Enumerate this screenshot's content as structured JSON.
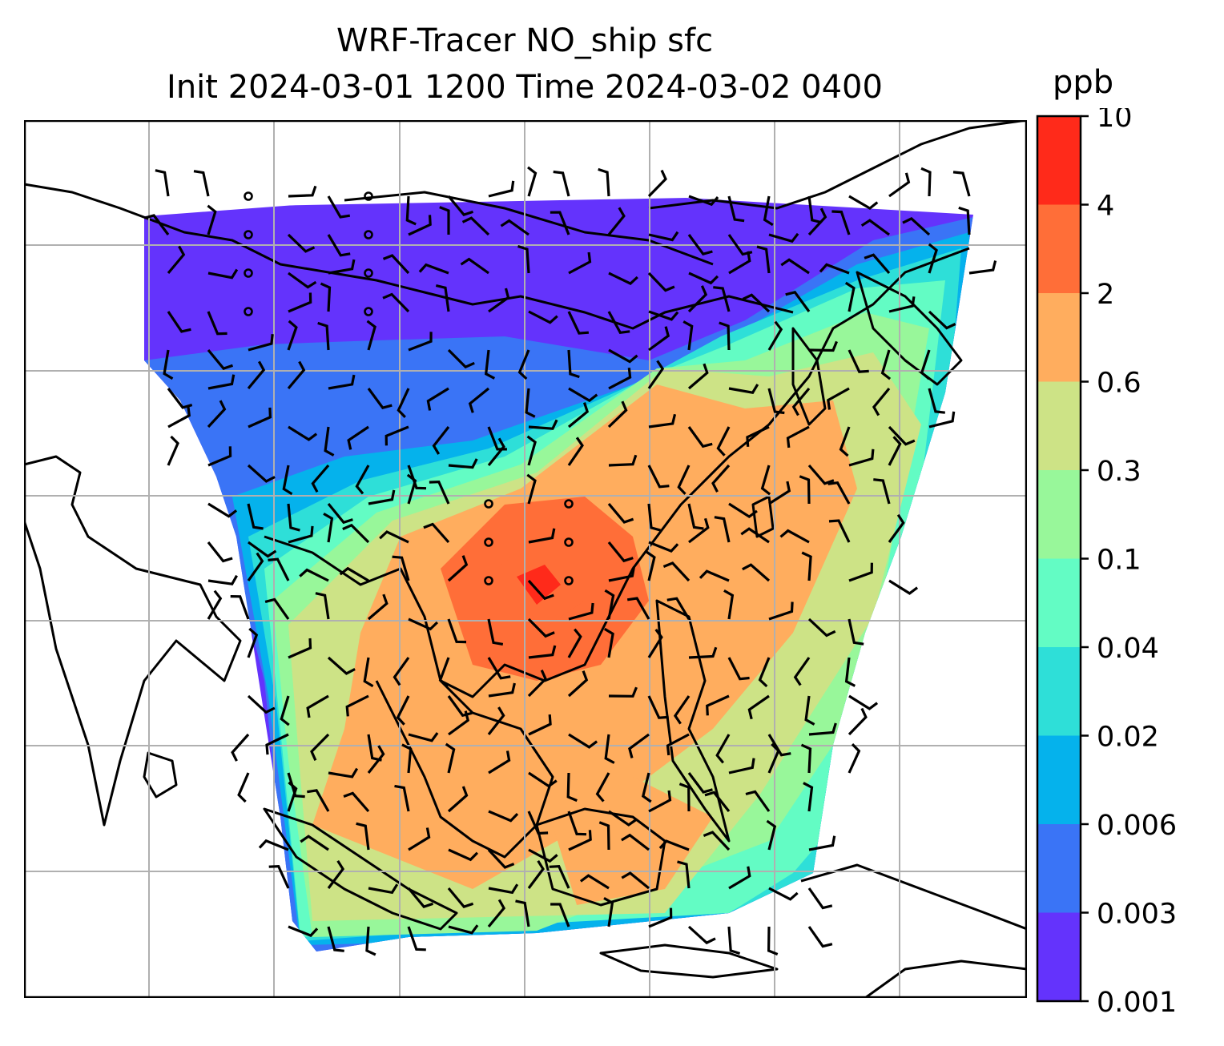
{
  "title": {
    "line1": "WRF-Tracer NO_ship sfc",
    "line2": "Init 2024-03-01 1200 Time 2024-03-02 0400"
  },
  "colorbar": {
    "unit": "ppb",
    "ticks": [
      "10",
      "4",
      "2",
      "0.6",
      "0.3",
      "0.1",
      "0.04",
      "0.02",
      "0.006",
      "0.003",
      "0.001"
    ],
    "colors": [
      "#ff2a1a",
      "#ff6e38",
      "#ffad5e",
      "#cde386",
      "#98f79a",
      "#63fcc4",
      "#2edfd8",
      "#05b2ec",
      "#3a74f6",
      "#6433fc"
    ]
  },
  "map": {
    "variable": "NO_ship",
    "level": "sfc",
    "overlays": [
      "coastlines",
      "lat-lon gridlines",
      "wind barbs",
      "calm-wind circles"
    ]
  }
}
